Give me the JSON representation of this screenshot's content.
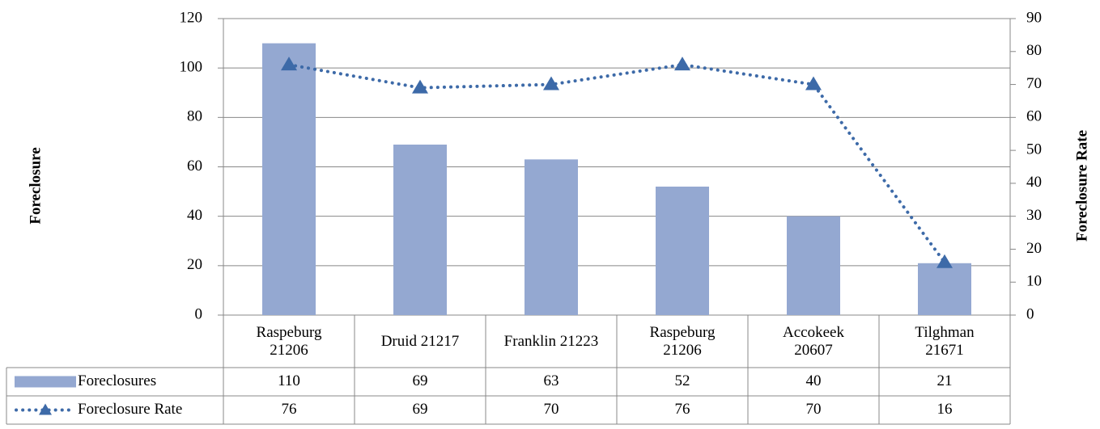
{
  "chart_data": {
    "type": "bar",
    "categories": [
      "Raspeburg 21206",
      "Druid 21217",
      "Franklin 21223",
      "Raspeburg 21206",
      "Accokeek 20607",
      "Tilghman 21671"
    ],
    "series": [
      {
        "name": "Foreclosures",
        "type": "bar",
        "color": "#94a8d1",
        "values": [
          110,
          69,
          63,
          52,
          40,
          21
        ]
      },
      {
        "name": "Foreclosure Rate",
        "type": "line",
        "axis": "y2",
        "color": "#3d6aa8",
        "values": [
          76,
          69,
          70,
          76,
          70,
          16
        ]
      }
    ],
    "ylabel": "Foreclosure",
    "y2label": "Foreclosure Rate",
    "ylim": [
      0,
      120
    ],
    "yticks": [
      0,
      20,
      40,
      60,
      80,
      100,
      120
    ],
    "y2lim": [
      0,
      90
    ],
    "y2ticks": [
      0,
      10,
      20,
      30,
      40,
      50,
      60,
      70,
      80,
      90
    ],
    "grid": true
  }
}
